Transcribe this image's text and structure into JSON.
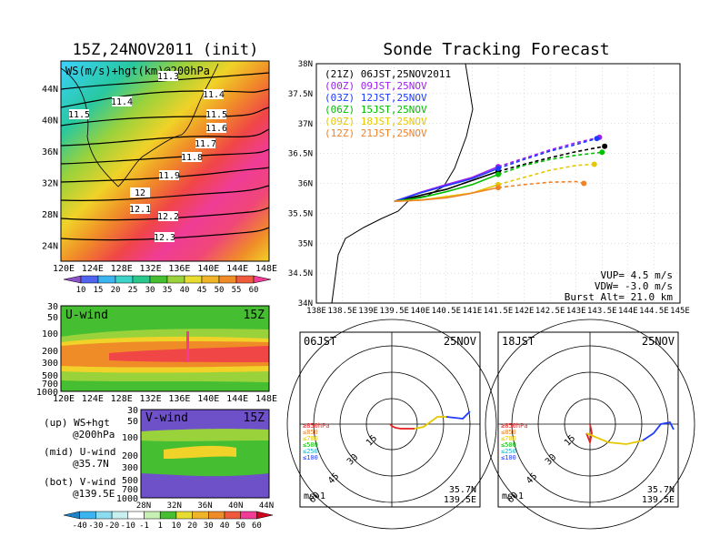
{
  "left_panel": {
    "title": "15Z,24NOV2011 (init)",
    "map_label": "WS(m/s)+hgt(km)@200hPa",
    "lon_ticks": [
      "120E",
      "124E",
      "128E",
      "132E",
      "136E",
      "140E",
      "144E",
      "148E"
    ],
    "lat_ticks": [
      "44N",
      "40N",
      "36N",
      "32N",
      "28N",
      "24N"
    ],
    "height_labels": [
      "11.3",
      "11.4",
      "11.4",
      "11.5",
      "11.5",
      "11.6",
      "11.7",
      "11.8",
      "11.9",
      "12",
      "12.1",
      "12.2",
      "12.3"
    ],
    "colorbar_ticks": [
      "10",
      "15",
      "20",
      "25",
      "30",
      "35",
      "40",
      "45",
      "50",
      "55",
      "60"
    ]
  },
  "u_panel": {
    "label": "U-wind",
    "time": "15Z",
    "p_ticks": [
      "30",
      "50",
      "100",
      "200",
      "300",
      "500",
      "700",
      "1000"
    ],
    "lon_ticks": [
      "120E",
      "124E",
      "128E",
      "132E",
      "136E",
      "140E",
      "144E",
      "148E"
    ]
  },
  "v_panel": {
    "label": "V-wind",
    "time": "15Z",
    "p_ticks": [
      "30",
      "50",
      "100",
      "200",
      "300",
      "500",
      "700",
      "1000"
    ],
    "lat_ticks": [
      "28N",
      "32N",
      "36N",
      "40N",
      "44N"
    ]
  },
  "legend_notes": {
    "up1": "(up) WS+hgt",
    "up2": "@200hPa",
    "mid1": "(mid) U-wind",
    "mid2": "@35.7N",
    "bot1": "(bot) V-wind",
    "bot2": "@139.5E"
  },
  "bottom_colorbar_ticks": [
    "-40",
    "-30",
    "-20",
    "-10",
    "-1",
    "1",
    "10",
    "20",
    "30",
    "40",
    "50",
    "60"
  ],
  "chart_data": {
    "type": "line",
    "title": "Sonde Tracking Forecast",
    "x_ticks": [
      "138E",
      "138.5E",
      "139E",
      "139.5E",
      "140E",
      "140.5E",
      "141E",
      "141.5E",
      "142E",
      "142.5E",
      "143E",
      "143.5E",
      "144E",
      "144.5E",
      "145E"
    ],
    "y_ticks": [
      "38N",
      "37.5N",
      "37N",
      "36.5N",
      "36N",
      "35.5N",
      "35N",
      "34.5N",
      "34N"
    ],
    "xlim": [
      138,
      145
    ],
    "ylim": [
      34,
      38
    ],
    "grid": true,
    "legend_position": "top-left",
    "series": [
      {
        "name": "(21Z) 06JST,25NOV2011",
        "color": "#000000",
        "x": [
          139.5,
          140.0,
          140.5,
          141.0,
          141.5,
          142.0,
          142.5,
          143.0,
          143.55
        ],
        "y": [
          35.7,
          35.8,
          35.9,
          36.05,
          36.2,
          36.32,
          36.43,
          36.53,
          36.62
        ]
      },
      {
        "name": "(00Z) 09JST,25NOV",
        "color": "#a020f0",
        "x": [
          139.5,
          140.0,
          140.5,
          141.0,
          141.5,
          142.0,
          142.5,
          143.0,
          143.45
        ],
        "y": [
          35.7,
          35.85,
          35.98,
          36.1,
          36.28,
          36.42,
          36.56,
          36.68,
          36.77
        ]
      },
      {
        "name": "(03Z) 12JST,25NOV",
        "color": "#1e3cff",
        "x": [
          139.5,
          140.0,
          140.5,
          141.0,
          141.5,
          142.0,
          142.5,
          143.0,
          143.4
        ],
        "y": [
          35.7,
          35.84,
          35.96,
          36.08,
          36.25,
          36.4,
          36.54,
          36.65,
          36.75
        ]
      },
      {
        "name": "(06Z) 15JST,25NOV",
        "color": "#00c000",
        "x": [
          139.5,
          140.0,
          140.5,
          141.0,
          141.5,
          142.0,
          142.5,
          143.0,
          143.5
        ],
        "y": [
          35.7,
          35.76,
          35.86,
          35.98,
          36.15,
          36.3,
          36.4,
          36.47,
          36.52
        ]
      },
      {
        "name": "(09Z) 18JST,25NOV",
        "color": "#e6c800",
        "x": [
          139.5,
          140.0,
          140.5,
          141.0,
          141.5,
          142.0,
          142.5,
          143.0,
          143.35
        ],
        "y": [
          35.7,
          35.72,
          35.78,
          35.84,
          35.98,
          36.1,
          36.22,
          36.3,
          36.32
        ]
      },
      {
        "name": "(12Z) 21JST,25NOV",
        "color": "#f08228",
        "x": [
          139.5,
          140.0,
          140.5,
          140.9,
          141.5,
          142.0,
          142.5,
          143.0,
          143.15
        ],
        "y": [
          35.7,
          35.72,
          35.76,
          35.82,
          35.93,
          35.98,
          36.02,
          36.03,
          36.0
        ]
      }
    ],
    "notes": [
      "VUP= 4.5 m/s",
      "VDW= -3.0 m/s",
      "Burst Alt= 21.0 km"
    ]
  },
  "polar_panels": [
    {
      "time_label": "06JST",
      "date_label": "25NOV",
      "pos1": "35.7N",
      "pos2": "139.5E",
      "unit": "ms-1",
      "ring_labels": [
        "15",
        "30",
        "45",
        "60"
      ],
      "level_legend": [
        "≥850hPa",
        "≤850",
        "≤700",
        "≤500",
        "≤250",
        "≤100"
      ]
    },
    {
      "time_label": "18JST",
      "date_label": "25NOV",
      "pos1": "35.7N",
      "pos2": "139.5E",
      "unit": "ms-1",
      "ring_labels": [
        "15",
        "30",
        "45",
        "60"
      ],
      "level_legend": [
        "≥850hPa",
        "≤850",
        "≤700",
        "≤500",
        "≤250",
        "≤100"
      ]
    }
  ]
}
